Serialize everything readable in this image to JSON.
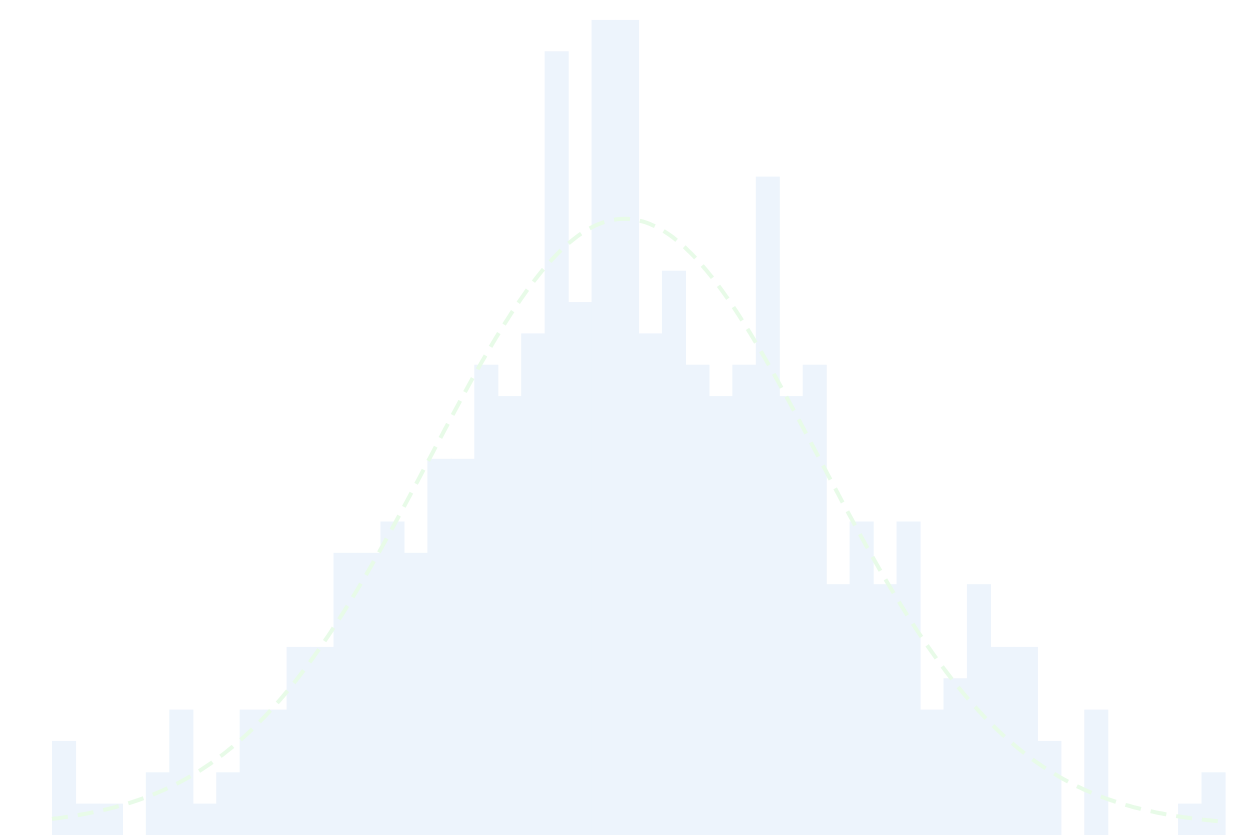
{
  "chart_data": {
    "type": "bar",
    "subtype": "histogram",
    "x": [
      0,
      1,
      2,
      3,
      4,
      5,
      6,
      7,
      8,
      9,
      10,
      11,
      12,
      13,
      14,
      15,
      16,
      17,
      18,
      19,
      20,
      21,
      22,
      23,
      24,
      25,
      26,
      27,
      28,
      29,
      30,
      31,
      32,
      33,
      34,
      35,
      36,
      37,
      38,
      39,
      40,
      41,
      42,
      43,
      44,
      45,
      46,
      47,
      48,
      49
    ],
    "values": [
      3,
      1,
      1,
      0,
      2,
      4,
      1,
      2,
      4,
      4,
      6,
      6,
      9,
      9,
      10,
      9,
      12,
      12,
      15,
      14,
      16,
      25,
      17,
      26,
      26,
      16,
      18,
      15,
      14,
      15,
      21,
      14,
      15,
      8,
      10,
      8,
      10,
      4,
      5,
      8,
      6,
      6,
      3,
      0,
      4,
      0,
      0,
      0,
      1,
      2
    ],
    "fit_curve": {
      "type": "normal",
      "mean": 24.4,
      "peak": 19.4,
      "sd": 8.3,
      "style": "dashed"
    },
    "colors": {
      "bars": "#edf4fc",
      "fit_curve": "#e8fbe8",
      "background": "#ffffff"
    },
    "axes_visible": false,
    "grid": false,
    "title": "",
    "xlabel": "",
    "ylabel": ""
  }
}
